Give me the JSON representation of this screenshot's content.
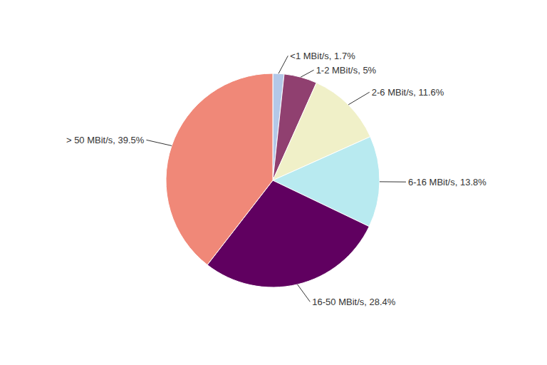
{
  "chart_data": {
    "type": "pie",
    "categories": [
      "<1 MBit/s, 1.7%",
      "1-2 MBit/s, 5%",
      "2-6 MBit/s, 11.6%",
      "6-16 MBit/s, 13.8%",
      "16-50 MBit/s, 28.4%",
      "> 50 MBit/s, 39.5%"
    ],
    "values": [
      1.7,
      5.0,
      11.6,
      13.8,
      28.4,
      39.5
    ],
    "colors": [
      "#b3c8e8",
      "#904070",
      "#f0f0c8",
      "#b8eaf0",
      "#600060",
      "#f08878"
    ]
  }
}
